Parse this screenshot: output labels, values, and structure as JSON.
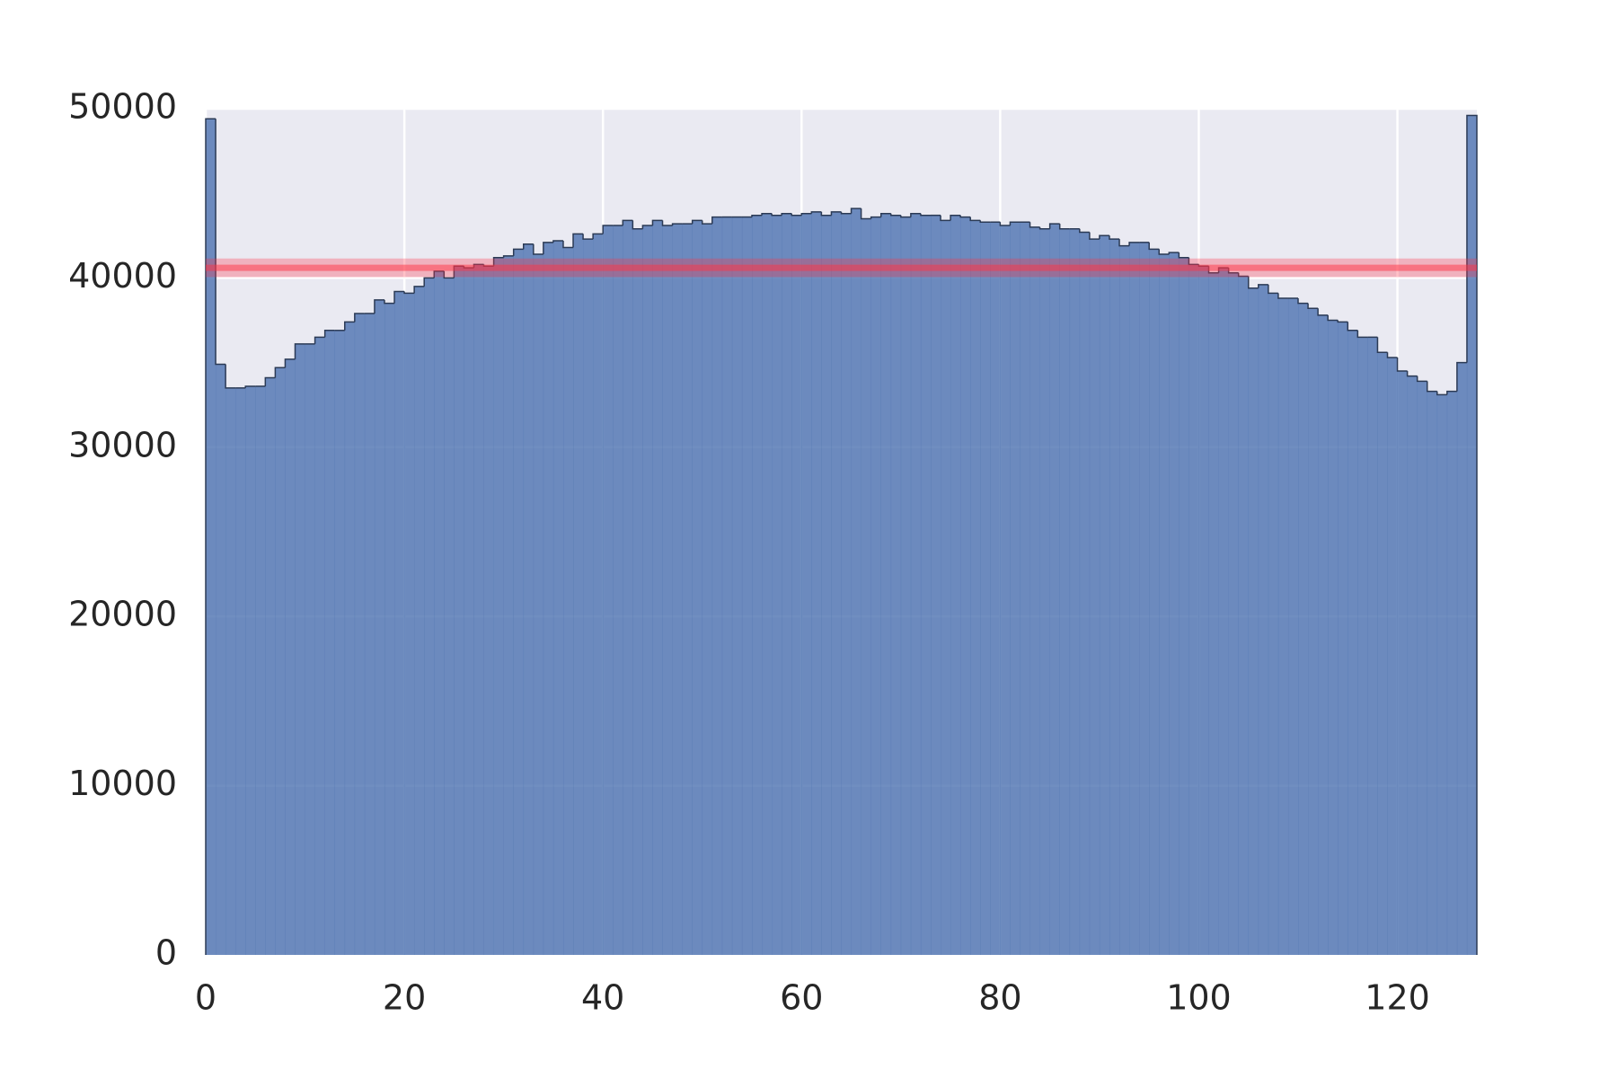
{
  "chart_data": {
    "type": "histogram",
    "bins": [
      0,
      1,
      2,
      3,
      4,
      5,
      6,
      7,
      8,
      9,
      10,
      11,
      12,
      13,
      14,
      15,
      16,
      17,
      18,
      19,
      20,
      21,
      22,
      23,
      24,
      25,
      26,
      27,
      28,
      29,
      30,
      31,
      32,
      33,
      34,
      35,
      36,
      37,
      38,
      39,
      40,
      41,
      42,
      43,
      44,
      45,
      46,
      47,
      48,
      49,
      50,
      51,
      52,
      53,
      54,
      55,
      56,
      57,
      58,
      59,
      60,
      61,
      62,
      63,
      64,
      65,
      66,
      67,
      68,
      69,
      70,
      71,
      72,
      73,
      74,
      75,
      76,
      77,
      78,
      79,
      80,
      81,
      82,
      83,
      84,
      85,
      86,
      87,
      88,
      89,
      90,
      91,
      92,
      93,
      94,
      95,
      96,
      97,
      98,
      99,
      100,
      101,
      102,
      103,
      104,
      105,
      106,
      107,
      108,
      109,
      110,
      111,
      112,
      113,
      114,
      115,
      116,
      117,
      118,
      119,
      120,
      121,
      122,
      123,
      124,
      125,
      126,
      127,
      128
    ],
    "values": [
      49400,
      34900,
      33500,
      33500,
      33600,
      33600,
      34100,
      34700,
      35200,
      36100,
      36100,
      36500,
      36900,
      36900,
      37400,
      37900,
      37900,
      38700,
      38500,
      39200,
      39100,
      39500,
      40000,
      40400,
      40000,
      40700,
      40600,
      40800,
      40700,
      41200,
      41300,
      41700,
      42000,
      41400,
      42100,
      42200,
      41800,
      42600,
      42300,
      42600,
      43100,
      43100,
      43400,
      42900,
      43100,
      43400,
      43100,
      43200,
      43200,
      43400,
      43200,
      43600,
      43600,
      43600,
      43600,
      43700,
      43800,
      43700,
      43800,
      43700,
      43800,
      43900,
      43700,
      43900,
      43800,
      44100,
      43500,
      43600,
      43800,
      43700,
      43600,
      43800,
      43700,
      43700,
      43400,
      43700,
      43600,
      43400,
      43300,
      43300,
      43100,
      43300,
      43300,
      43000,
      42900,
      43200,
      42900,
      42900,
      42700,
      42300,
      42500,
      42300,
      41900,
      42100,
      42100,
      41700,
      41400,
      41500,
      41200,
      40800,
      40700,
      40300,
      40600,
      40300,
      40100,
      39400,
      39600,
      39100,
      38800,
      38800,
      38500,
      38200,
      37800,
      37500,
      37400,
      36900,
      36500,
      36500,
      35600,
      35300,
      34500,
      34200,
      33900,
      33300,
      33100,
      33300,
      35000,
      49600
    ],
    "color": "#4c72b0",
    "reference_line": 40600,
    "reference_band": [
      40050,
      41150
    ],
    "reference_color": "#ff3344",
    "xlim": [
      0,
      128
    ],
    "xticks": [
      0,
      20,
      40,
      60,
      80,
      100,
      120
    ],
    "ylim": [
      0,
      50000
    ],
    "yticks": [
      0,
      10000,
      20000,
      30000,
      40000,
      50000
    ],
    "grid": true
  }
}
